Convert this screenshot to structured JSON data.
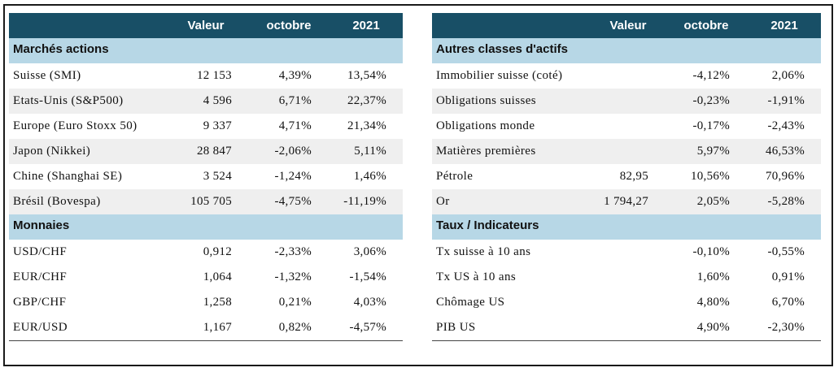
{
  "left": {
    "headers": [
      "",
      "Valeur",
      "octobre",
      "2021"
    ],
    "sections": [
      {
        "title": "Marchés actions",
        "rows": [
          {
            "name": "Suisse (SMI)",
            "valeur": "12 153",
            "octobre": "4,39%",
            "annee": "13,54%"
          },
          {
            "name": "Etats-Unis (S&P500)",
            "valeur": "4 596",
            "octobre": "6,71%",
            "annee": "22,37%"
          },
          {
            "name": "Europe (Euro Stoxx 50)",
            "valeur": "9 337",
            "octobre": "4,71%",
            "annee": "21,34%"
          },
          {
            "name": "Japon (Nikkei)",
            "valeur": "28 847",
            "octobre": "-2,06%",
            "annee": "5,11%"
          },
          {
            "name": "Chine (Shanghai SE)",
            "valeur": "3 524",
            "octobre": "-1,24%",
            "annee": "1,46%"
          },
          {
            "name": "Brésil (Bovespa)",
            "valeur": "105 705",
            "octobre": "-4,75%",
            "annee": "-11,19%"
          }
        ]
      },
      {
        "title": "Monnaies",
        "rows": [
          {
            "name": "USD/CHF",
            "valeur": "0,912",
            "octobre": "-2,33%",
            "annee": "3,06%"
          },
          {
            "name": "EUR/CHF",
            "valeur": "1,064",
            "octobre": "-1,32%",
            "annee": "-1,54%"
          },
          {
            "name": "GBP/CHF",
            "valeur": "1,258",
            "octobre": "0,21%",
            "annee": "4,03%"
          },
          {
            "name": "EUR/USD",
            "valeur": "1,167",
            "octobre": "0,82%",
            "annee": "-4,57%"
          }
        ]
      }
    ]
  },
  "right": {
    "headers": [
      "",
      "Valeur",
      "octobre",
      "2021"
    ],
    "sections": [
      {
        "title": "Autres classes d'actifs",
        "rows": [
          {
            "name": "Immobilier suisse (coté)",
            "valeur": "",
            "octobre": "-4,12%",
            "annee": "2,06%"
          },
          {
            "name": "Obligations suisses",
            "valeur": "",
            "octobre": "-0,23%",
            "annee": "-1,91%"
          },
          {
            "name": "Obligations monde",
            "valeur": "",
            "octobre": "-0,17%",
            "annee": "-2,43%"
          },
          {
            "name": "Matières premières",
            "valeur": "",
            "octobre": "5,97%",
            "annee": "46,53%"
          },
          {
            "name": "Pétrole",
            "valeur": "82,95",
            "octobre": "10,56%",
            "annee": "70,96%"
          },
          {
            "name": "Or",
            "valeur": "1 794,27",
            "octobre": "2,05%",
            "annee": "-5,28%"
          }
        ]
      },
      {
        "title": "Taux / Indicateurs",
        "rows": [
          {
            "name": "Tx suisse à 10 ans",
            "valeur": "",
            "octobre": "-0,10%",
            "annee": "-0,55%"
          },
          {
            "name": "Tx US à 10 ans",
            "valeur": "",
            "octobre": "1,60%",
            "annee": "0,91%"
          },
          {
            "name": "Chômage US",
            "valeur": "",
            "octobre": "4,80%",
            "annee": "6,70%"
          },
          {
            "name": "PIB US",
            "valeur": "",
            "octobre": "4,90%",
            "annee": "-2,30%"
          }
        ]
      }
    ]
  },
  "colors": {
    "header_bg": "#184f66",
    "section_bg": "#b7d7e6",
    "alt_row_bg": "#efefef"
  }
}
